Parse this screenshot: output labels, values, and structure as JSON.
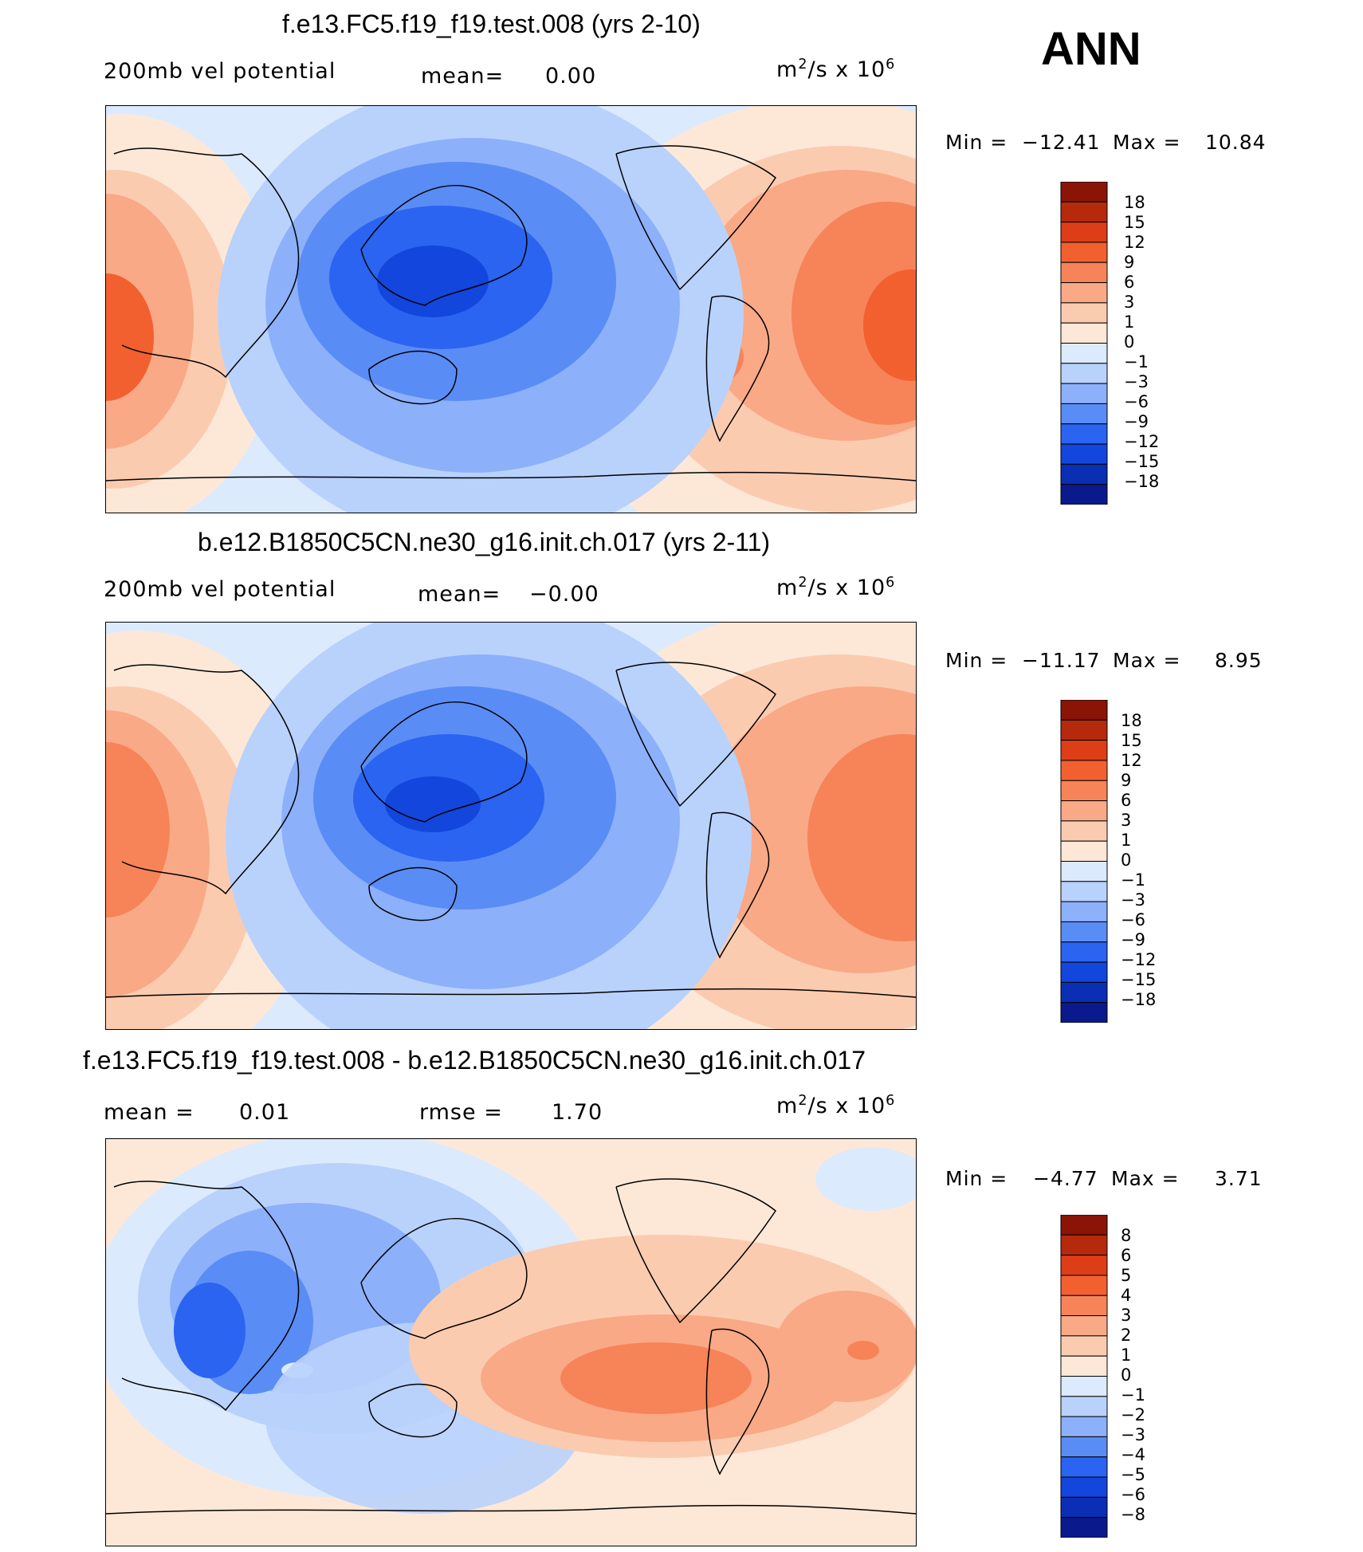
{
  "season": "ANN",
  "colors": {
    "abs_levels": [
      "#0a1a8c",
      "#0a2eb4",
      "#1346dc",
      "#2a64f0",
      "#5a8cf5",
      "#8cb0fa",
      "#b9d2fc",
      "#dceafd",
      "#fde8d8",
      "#fbcbb0",
      "#f9a986",
      "#f68458",
      "#f26030",
      "#de3e17",
      "#b52a0c",
      "#8a1406"
    ],
    "diff_levels": [
      "#0a1a8c",
      "#0a2eb4",
      "#1346dc",
      "#2a64f0",
      "#5a8cf5",
      "#8cb0fa",
      "#b9d2fc",
      "#dceafd",
      "#fde8d8",
      "#fbcbb0",
      "#f9a986",
      "#f68458",
      "#f26030",
      "#de3e17",
      "#b52a0c",
      "#8a1406"
    ]
  },
  "panels": [
    {
      "title": "f.e13.FC5.f19_f19.test.008 (yrs 2-10)",
      "left_label": "200mb vel potential",
      "mid_label": "mean=",
      "mid_value": "0.00",
      "units_base": "m",
      "units_tail": "/s x 10",
      "units_sup1": "2",
      "units_sup2": "6",
      "min_label": "Min =",
      "min_value": "−12.41",
      "max_label": "Max =",
      "max_value": "10.84",
      "cbar_labels": [
        "18",
        "15",
        "12",
        "9",
        "6",
        "3",
        "1",
        "0",
        "−1",
        "−3",
        "−6",
        "−9",
        "−12",
        "−15",
        "−18"
      ]
    },
    {
      "title": "b.e12.B1850C5CN.ne30_g16.init.ch.017 (yrs 2-11)",
      "left_label": "200mb vel potential",
      "mid_label": "mean=",
      "mid_value": "−0.00",
      "units_base": "m",
      "units_tail": "/s x 10",
      "units_sup1": "2",
      "units_sup2": "6",
      "min_label": "Min =",
      "min_value": "−11.17",
      "max_label": "Max =",
      "max_value": "8.95",
      "cbar_labels": [
        "18",
        "15",
        "12",
        "9",
        "6",
        "3",
        "1",
        "0",
        "−1",
        "−3",
        "−6",
        "−9",
        "−12",
        "−15",
        "−18"
      ]
    },
    {
      "title": "f.e13.FC5.f19_f19.test.008 - b.e12.B1850C5CN.ne30_g16.init.ch.017",
      "left_label": "mean =",
      "left_value": "0.01",
      "mid_label": "rmse =",
      "mid_value": "1.70",
      "units_base": "m",
      "units_tail": "/s x 10",
      "units_sup1": "2",
      "units_sup2": "6",
      "min_label": "Min =",
      "min_value": "−4.77",
      "max_label": "Max =",
      "max_value": "3.71",
      "cbar_labels": [
        "8",
        "6",
        "5",
        "4",
        "3",
        "2",
        "1",
        "0",
        "−1",
        "−2",
        "−3",
        "−4",
        "−5",
        "−6",
        "−8"
      ]
    }
  ]
}
